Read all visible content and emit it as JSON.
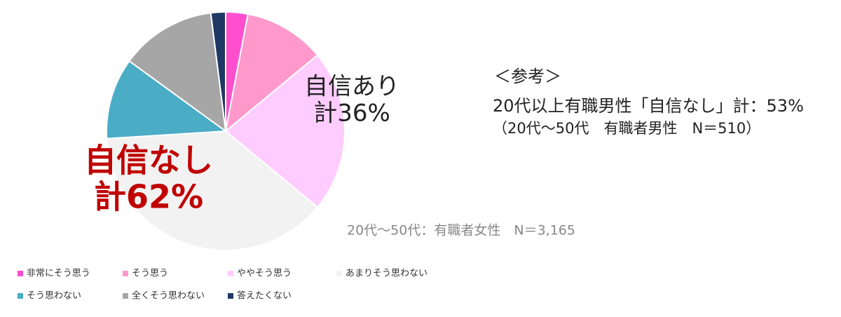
{
  "chart_data": {
    "type": "pie",
    "categories": [
      "非常にそう思う",
      "そう思う",
      "ややそう思う",
      "あまりそう思わない",
      "そう思わない",
      "全くそう思わない",
      "答えたくない"
    ],
    "values": [
      3,
      11,
      22,
      38,
      11,
      13,
      2
    ],
    "colors": [
      "#ff4fcf",
      "#ff99cc",
      "#ffccff",
      "#f2f2f2",
      "#4bacc6",
      "#a6a6a6",
      "#1f3864"
    ],
    "annotations": [
      "自信あり",
      "計36%",
      "自信なし",
      "計62%",
      "＜参考＞",
      "20代以上有職男性「自信なし」計：53%",
      "（20代～50代　有職者男性　N＝510）",
      "20代～50代：有職者女性　N＝3,165"
    ]
  }
}
